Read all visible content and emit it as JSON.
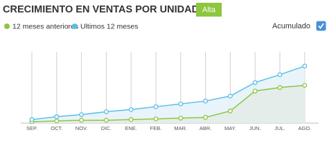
{
  "chart_data": {
    "type": "line",
    "title": "CRECIMIENTO EN VENTAS POR UNIDADES",
    "badge": "Alta",
    "toggle": {
      "label": "Acumulado",
      "checked": true
    },
    "categories": [
      "SEP.",
      "OCT.",
      "NOV.",
      "DIC.",
      "ENE.",
      "FEB.",
      "MAR.",
      "ABR.",
      "MAY.",
      "JUN.",
      "JUL.",
      "AGO."
    ],
    "series": [
      {
        "name": "12 meses anteriores",
        "color": "#8dc63f",
        "values": [
          2,
          3,
          4,
          4,
          5,
          6,
          7,
          8,
          17,
          45,
          50,
          53
        ]
      },
      {
        "name": "Ultimos 12 meses",
        "color": "#5bbde8",
        "values": [
          5,
          9,
          12,
          16,
          19,
          23,
          27,
          31,
          38,
          57,
          68,
          80
        ]
      }
    ],
    "ylim": [
      0,
      100
    ],
    "area": true
  }
}
